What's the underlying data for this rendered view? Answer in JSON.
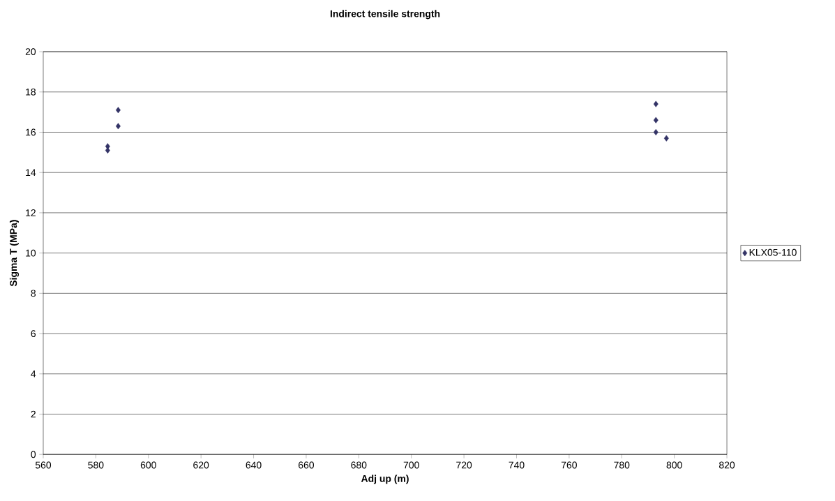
{
  "chart_data": {
    "type": "scatter",
    "title": "Indirect tensile strength",
    "xlabel": "Adj up (m)",
    "ylabel": "Sigma T (MPa)",
    "series": [
      {
        "name": "KLX05-110",
        "color": "#333366",
        "x": [
          584.5,
          584.5,
          588.5,
          588.5,
          793,
          793,
          793,
          797
        ],
        "values": [
          15.1,
          15.3,
          16.3,
          17.1,
          17.4,
          16.6,
          16.0,
          15.7
        ]
      }
    ],
    "xlim": [
      560,
      820
    ],
    "ylim": [
      0,
      20
    ],
    "xticks": [
      560,
      580,
      600,
      620,
      640,
      660,
      680,
      700,
      720,
      740,
      760,
      780,
      800,
      820
    ],
    "yticks": [
      0,
      2,
      4,
      6,
      8,
      10,
      12,
      14,
      16,
      18,
      20
    ],
    "grid": "y",
    "legend": "right",
    "marker": "diamond"
  }
}
